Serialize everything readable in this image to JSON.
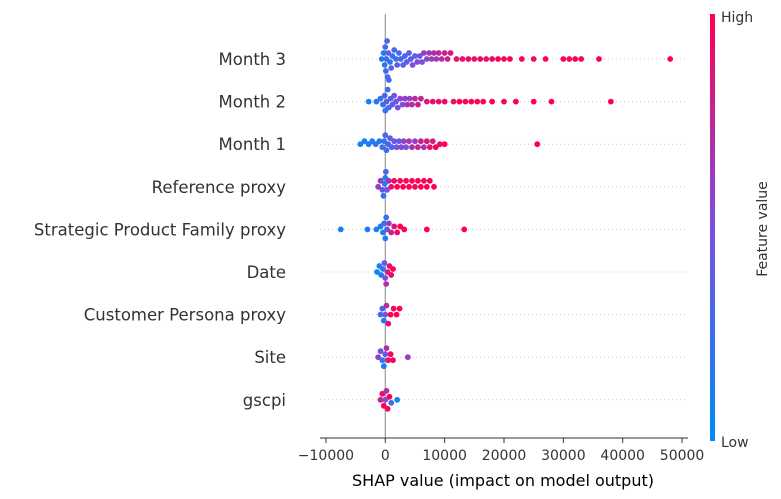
{
  "chart_data": {
    "type": "scatter",
    "subtype": "shap-beeswarm",
    "xlabel": "SHAP value (impact on model output)",
    "xlim": [
      -11000,
      51000
    ],
    "x_ticks": [
      -10000,
      0,
      10000,
      20000,
      30000,
      40000,
      50000
    ],
    "x_tick_labels": [
      "−10000",
      "0",
      "10000",
      "20000",
      "30000",
      "40000",
      "50000"
    ],
    "features": [
      "Month 3",
      "Month 2",
      "Month 1",
      "Reference proxy",
      "Strategic Product Family proxy",
      "Date",
      "Customer Persona proxy",
      "Site",
      "gscpi"
    ],
    "colorbar": {
      "label": "Feature value",
      "high": "High",
      "low": "Low",
      "low_color": "#008bfb",
      "mid_color": "#7b4fe0",
      "high_color": "#ff0052"
    },
    "zero_line": 0,
    "grid": false,
    "points": [
      {
        "feature": "Month 3",
        "shap": [
          -600,
          -300,
          -100,
          0,
          100,
          200,
          300,
          400,
          500,
          600,
          800,
          1000,
          1200,
          1500,
          1800,
          2000,
          2300,
          2600,
          3000,
          3300,
          3600,
          4000,
          4300,
          4600,
          5000,
          5400,
          5800,
          6200,
          6500,
          7000,
          7400,
          7800,
          8200,
          8600,
          9000,
          9500,
          10000,
          10500,
          11000,
          12000,
          13000,
          14000,
          15000,
          16000,
          17000,
          18000,
          19000,
          20000,
          21000,
          23000,
          25000,
          27000,
          30000,
          31000,
          32000,
          33000,
          36000,
          48000
        ],
        "value": [
          0.1,
          0.15,
          0.2,
          0.25,
          0.3,
          0.25,
          0.35,
          0.2,
          0.4,
          0.3,
          0.2,
          0.35,
          0.25,
          0.3,
          0.2,
          0.4,
          0.3,
          0.25,
          0.35,
          0.3,
          0.4,
          0.45,
          0.35,
          0.5,
          0.4,
          0.55,
          0.45,
          0.5,
          0.6,
          0.55,
          0.65,
          0.6,
          0.7,
          0.65,
          0.75,
          0.7,
          0.8,
          0.8,
          0.85,
          0.9,
          0.9,
          0.95,
          0.9,
          0.95,
          0.9,
          0.95,
          1.0,
          0.95,
          1.0,
          1.0,
          0.95,
          1.0,
          1.0,
          0.95,
          1.0,
          1.0,
          1.0,
          1.0
        ]
      },
      {
        "feature": "Month 2",
        "shap": [
          -2800,
          -1500,
          -800,
          -400,
          -100,
          0,
          200,
          400,
          600,
          900,
          1200,
          1500,
          1800,
          2100,
          2500,
          2900,
          3300,
          3700,
          4100,
          4500,
          5000,
          5500,
          6000,
          7000,
          8000,
          9000,
          10000,
          11500,
          12500,
          13500,
          14500,
          15500,
          16500,
          18000,
          20000,
          22000,
          25000,
          28000,
          38000
        ],
        "value": [
          0.1,
          0.15,
          0.2,
          0.25,
          0.3,
          0.2,
          0.35,
          0.25,
          0.3,
          0.4,
          0.35,
          0.45,
          0.4,
          0.5,
          0.55,
          0.5,
          0.6,
          0.65,
          0.6,
          0.7,
          0.75,
          0.8,
          0.75,
          0.85,
          0.9,
          0.9,
          0.95,
          0.9,
          1.0,
          0.95,
          1.0,
          0.95,
          1.0,
          1.0,
          0.95,
          1.0,
          1.0,
          1.0,
          1.0
        ]
      },
      {
        "feature": "Month 1",
        "shap": [
          -4200,
          -3500,
          -2800,
          -2200,
          -1600,
          -1000,
          -500,
          -200,
          0,
          200,
          500,
          800,
          1100,
          1500,
          1900,
          2300,
          2700,
          3100,
          3500,
          4000,
          4500,
          5000,
          5500,
          6000,
          6500,
          7000,
          7500,
          8000,
          8500,
          9200,
          10000,
          25600
        ],
        "value": [
          0.05,
          0.1,
          0.15,
          0.1,
          0.2,
          0.15,
          0.25,
          0.2,
          0.3,
          0.25,
          0.35,
          0.4,
          0.3,
          0.45,
          0.5,
          0.4,
          0.55,
          0.6,
          0.5,
          0.65,
          0.7,
          0.6,
          0.75,
          0.8,
          0.7,
          0.85,
          0.9,
          0.8,
          0.95,
          0.9,
          1.0,
          1.0
        ]
      },
      {
        "feature": "Reference proxy",
        "shap": [
          -1200,
          -800,
          -500,
          -300,
          -100,
          0,
          100,
          300,
          600,
          1000,
          1500,
          2000,
          2500,
          3000,
          3500,
          4000,
          4500,
          5000,
          5500,
          6000,
          6500,
          7000,
          7500,
          8200
        ],
        "value": [
          0.6,
          0.65,
          0.4,
          0.2,
          0.1,
          0.15,
          0.3,
          0.5,
          0.7,
          0.9,
          0.95,
          1.0,
          0.95,
          1.0,
          0.95,
          1.0,
          1.0,
          0.95,
          1.0,
          1.0,
          0.95,
          1.0,
          1.0,
          1.0
        ]
      },
      {
        "feature": "Strategic Product Family proxy",
        "shap": [
          -7500,
          -3000,
          -1500,
          -800,
          -400,
          -200,
          0,
          150,
          300,
          600,
          1000,
          1500,
          2000,
          2500,
          3200,
          7000,
          13300
        ],
        "value": [
          0.05,
          0.1,
          0.1,
          0.15,
          0.1,
          0.2,
          0.15,
          0.25,
          0.4,
          0.6,
          0.8,
          0.9,
          0.95,
          1.0,
          0.95,
          1.0,
          1.0
        ]
      },
      {
        "feature": "Date",
        "shap": [
          -1400,
          -1000,
          -700,
          -400,
          -150,
          0,
          150,
          400,
          700,
          1000,
          1300
        ],
        "value": [
          0.05,
          0.1,
          0.15,
          0.2,
          0.4,
          0.5,
          0.7,
          0.8,
          0.9,
          0.95,
          1.0
        ]
      },
      {
        "feature": "Customer Persona proxy",
        "shap": [
          -800,
          -500,
          -250,
          0,
          200,
          500,
          900,
          1400,
          1900,
          2400
        ],
        "value": [
          0.2,
          0.3,
          0.1,
          0.5,
          0.7,
          0.9,
          1.0,
          0.95,
          1.0,
          1.0
        ]
      },
      {
        "feature": "Site",
        "shap": [
          -1200,
          -800,
          -500,
          -250,
          0,
          200,
          500,
          900,
          1300,
          3800
        ],
        "value": [
          0.6,
          0.5,
          0.2,
          0.1,
          0.4,
          0.7,
          0.9,
          1.0,
          0.95,
          0.6
        ]
      },
      {
        "feature": "gscpi",
        "shap": [
          -800,
          -500,
          -250,
          0,
          200,
          400,
          700,
          1000,
          2000
        ],
        "value": [
          0.8,
          0.9,
          1.0,
          0.5,
          0.7,
          0.95,
          1.0,
          0.3,
          0.05
        ]
      }
    ]
  }
}
